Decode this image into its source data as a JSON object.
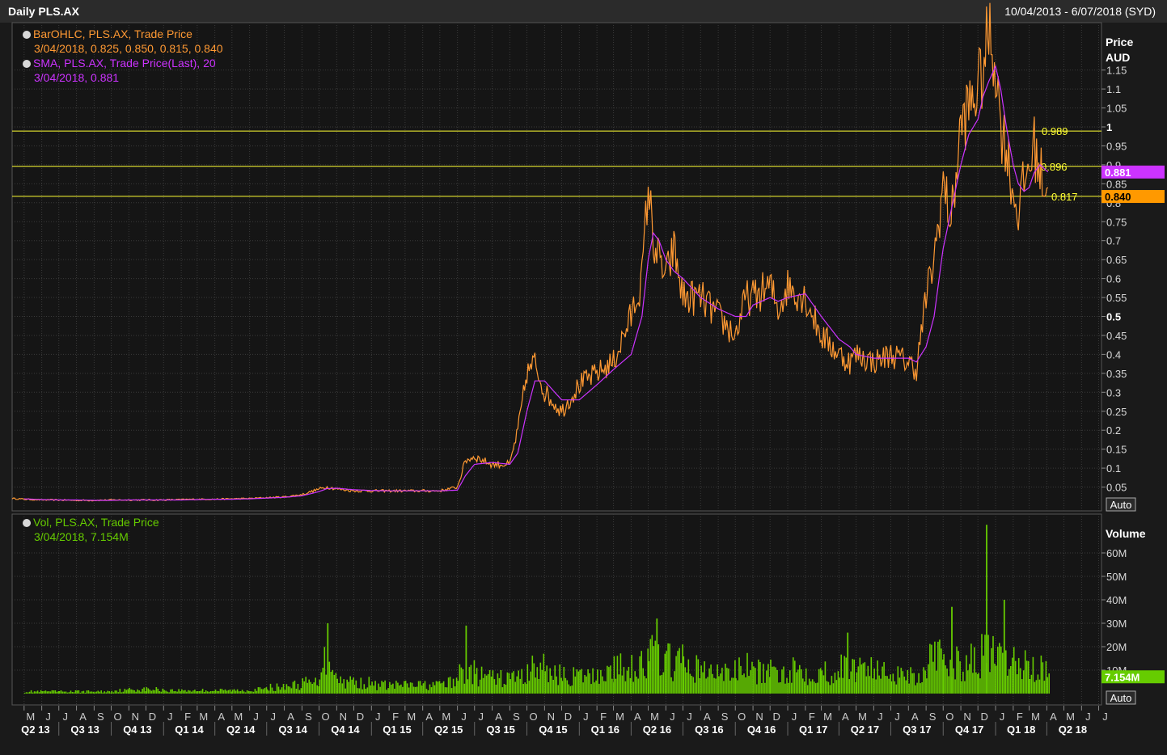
{
  "window": {
    "title": "Daily PLS.AX",
    "date_range": "10/04/2013 - 6/07/2018 (SYD)"
  },
  "legend": {
    "ohlc_name": "BarOHLC, PLS.AX, Trade Price",
    "ohlc_values": "3/04/2018, 0.825, 0.850, 0.815, 0.840",
    "sma_name": "SMA, PLS.AX, Trade Price(Last), 20",
    "sma_values": "3/04/2018, 0.881",
    "vol_name": "Vol, PLS.AX, Trade Price",
    "vol_values": "3/04/2018, 7.154M"
  },
  "colors": {
    "background": "#1a1a1a",
    "grid": "#3a3a3a",
    "price": "#ff9933",
    "sma": "#cc33ff",
    "volume": "#66cc00",
    "hline": "#ffff33",
    "text": "#d8d8d8"
  },
  "auto_label": "Auto",
  "chart_data": [
    {
      "type": "line",
      "ylabel": "Price",
      "unit": "AUD",
      "ylim": [
        0,
        1.22
      ],
      "y_ticks": [
        "0.05",
        "0.1",
        "0.15",
        "0.2",
        "0.25",
        "0.3",
        "0.35",
        "0.4",
        "0.45",
        "0.5",
        "0.55",
        "0.6",
        "0.65",
        "0.7",
        "0.75",
        "0.8",
        "0.85",
        "0.9",
        "0.95",
        "1",
        "1.05",
        "1.1",
        "1.15"
      ],
      "x": [
        "2013-04-10",
        "2013-05-01",
        "2013-06-01",
        "2013-07-01",
        "2013-08-01",
        "2013-09-01",
        "2013-10-01",
        "2013-11-01",
        "2013-12-01",
        "2014-01-01",
        "2014-02-01",
        "2014-03-01",
        "2014-04-01",
        "2014-05-01",
        "2014-06-01",
        "2014-07-01",
        "2014-08-01",
        "2014-09-01",
        "2014-10-01",
        "2014-10-15",
        "2014-11-01",
        "2014-12-01",
        "2015-01-01",
        "2015-02-01",
        "2015-03-01",
        "2015-04-01",
        "2015-05-01",
        "2015-06-01",
        "2015-06-15",
        "2015-07-01",
        "2015-08-01",
        "2015-09-01",
        "2015-09-15",
        "2015-10-01",
        "2015-10-15",
        "2015-11-01",
        "2015-12-01",
        "2016-01-01",
        "2016-02-01",
        "2016-03-01",
        "2016-04-01",
        "2016-04-20",
        "2016-05-01",
        "2016-05-10",
        "2016-05-20",
        "2016-06-01",
        "2016-06-15",
        "2016-07-01",
        "2016-08-01",
        "2016-09-01",
        "2016-10-01",
        "2016-10-20",
        "2016-11-01",
        "2016-12-01",
        "2016-12-15",
        "2017-01-01",
        "2017-02-01",
        "2017-03-01",
        "2017-04-01",
        "2017-04-20",
        "2017-05-01",
        "2017-06-01",
        "2017-07-01",
        "2017-08-01",
        "2017-08-15",
        "2017-09-01",
        "2017-09-15",
        "2017-10-01",
        "2017-10-15",
        "2017-11-01",
        "2017-11-15",
        "2017-12-01",
        "2017-12-10",
        "2017-12-20",
        "2018-01-01",
        "2018-01-10",
        "2018-01-20",
        "2018-02-01",
        "2018-02-10",
        "2018-02-20",
        "2018-03-01",
        "2018-03-10",
        "2018-03-20",
        "2018-04-03"
      ],
      "series": [
        {
          "values": [
            0.02,
            0.018,
            0.016,
            0.016,
            0.015,
            0.015,
            0.016,
            0.016,
            0.016,
            0.016,
            0.017,
            0.018,
            0.018,
            0.019,
            0.02,
            0.022,
            0.024,
            0.03,
            0.045,
            0.05,
            0.045,
            0.04,
            0.04,
            0.04,
            0.04,
            0.04,
            0.04,
            0.05,
            0.12,
            0.13,
            0.11,
            0.11,
            0.2,
            0.35,
            0.38,
            0.3,
            0.25,
            0.32,
            0.35,
            0.38,
            0.5,
            0.6,
            0.85,
            0.7,
            0.65,
            0.6,
            0.68,
            0.55,
            0.55,
            0.5,
            0.45,
            0.55,
            0.55,
            0.58,
            0.52,
            0.58,
            0.55,
            0.45,
            0.4,
            0.38,
            0.4,
            0.38,
            0.4,
            0.38,
            0.36,
            0.55,
            0.65,
            0.85,
            0.75,
            1.0,
            1.05,
            1.1,
            1.15,
            1.25,
            1.17,
            1.0,
            0.95,
            0.82,
            0.78,
            0.85,
            0.9,
            0.95,
            0.88,
            0.84
          ]
        },
        {
          "values": [
            null,
            0.019,
            0.017,
            0.016,
            0.016,
            0.015,
            0.015,
            0.016,
            0.016,
            0.016,
            0.016,
            0.017,
            0.018,
            0.018,
            0.019,
            0.021,
            0.023,
            0.027,
            0.038,
            0.046,
            0.047,
            0.043,
            0.041,
            0.04,
            0.04,
            0.04,
            0.04,
            0.042,
            0.08,
            0.11,
            0.115,
            0.11,
            0.14,
            0.25,
            0.33,
            0.33,
            0.28,
            0.28,
            0.32,
            0.36,
            0.4,
            0.5,
            0.65,
            0.72,
            0.7,
            0.65,
            0.62,
            0.6,
            0.55,
            0.52,
            0.5,
            0.5,
            0.53,
            0.55,
            0.54,
            0.55,
            0.56,
            0.5,
            0.44,
            0.42,
            0.4,
            0.39,
            0.39,
            0.39,
            0.38,
            0.42,
            0.5,
            0.68,
            0.78,
            0.9,
            0.98,
            1.02,
            1.08,
            1.12,
            1.16,
            1.1,
            1.0,
            0.9,
            0.85,
            0.83,
            0.84,
            0.88,
            0.9,
            0.881
          ]
        }
      ],
      "hlines": [
        {
          "y": 0.989,
          "label": "0.989"
        },
        {
          "y": 0.896,
          "label": "0.896"
        },
        {
          "y": 0.817,
          "label": "0.817"
        }
      ],
      "last_tags": [
        {
          "label": "0.881",
          "y": 0.881,
          "color": "#cc33ff"
        },
        {
          "label": "0.840",
          "y": 0.84,
          "color": "#ff9900"
        }
      ],
      "x_months": [
        "M",
        "J",
        "J",
        "A",
        "S",
        "O",
        "N",
        "D",
        "J",
        "F",
        "M",
        "A",
        "M",
        "J",
        "J",
        "A",
        "S",
        "O",
        "N",
        "D",
        "J",
        "F",
        "M",
        "A",
        "M",
        "J",
        "J",
        "A",
        "S",
        "O",
        "N",
        "D",
        "J",
        "F",
        "M",
        "A",
        "M",
        "J",
        "J",
        "A",
        "S",
        "O",
        "N",
        "D",
        "J",
        "F",
        "M",
        "A",
        "M",
        "J",
        "J",
        "A",
        "S",
        "O",
        "N",
        "D",
        "J",
        "F",
        "M",
        "A",
        "M",
        "J",
        "J"
      ],
      "x_quarters": [
        "Q2 13",
        "Q3 13",
        "Q4 13",
        "Q1 14",
        "Q2 14",
        "Q3 14",
        "Q4 14",
        "Q1 15",
        "Q2 15",
        "Q3 15",
        "Q4 15",
        "Q1 16",
        "Q2 16",
        "Q3 16",
        "Q4 16",
        "Q1 17",
        "Q2 17",
        "Q3 17",
        "Q4 17",
        "Q1 18",
        "Q2 18"
      ],
      "x_range": [
        "2013-04-10",
        "2018-07-06"
      ],
      "grid": true
    },
    {
      "type": "bar",
      "ylabel": "Volume",
      "ylim": [
        0,
        74
      ],
      "y_ticks": [
        "10M",
        "20M",
        "30M",
        "40M",
        "50M",
        "60M"
      ],
      "last_value": "7.154M",
      "x": [
        "2013-05",
        "2013-06",
        "2013-07",
        "2013-08",
        "2013-09",
        "2013-10",
        "2013-11",
        "2013-12",
        "2014-01",
        "2014-02",
        "2014-03",
        "2014-04",
        "2014-05",
        "2014-06",
        "2014-07",
        "2014-08",
        "2014-09",
        "2014-10",
        "2014-11",
        "2014-12",
        "2015-01",
        "2015-02",
        "2015-03",
        "2015-04",
        "2015-05",
        "2015-06",
        "2015-07",
        "2015-08",
        "2015-09",
        "2015-10",
        "2015-11",
        "2015-12",
        "2016-01",
        "2016-02",
        "2016-03",
        "2016-04",
        "2016-05",
        "2016-06",
        "2016-07",
        "2016-08",
        "2016-09",
        "2016-10",
        "2016-11",
        "2016-12",
        "2017-01",
        "2017-02",
        "2017-03",
        "2017-04",
        "2017-05",
        "2017-06",
        "2017-07",
        "2017-08",
        "2017-09",
        "2017-10",
        "2017-11",
        "2017-12",
        "2018-01",
        "2018-02",
        "2018-03",
        "2018-04"
      ],
      "values": [
        1,
        1,
        1,
        1,
        1,
        1.5,
        2,
        2,
        1.5,
        1.5,
        1.5,
        1.5,
        1.5,
        2,
        3,
        4,
        5,
        15,
        6,
        5,
        4,
        4,
        4,
        4,
        5,
        10,
        8,
        7,
        8,
        12,
        10,
        8,
        8,
        10,
        12,
        14,
        18,
        15,
        12,
        10,
        10,
        12,
        10,
        10,
        12,
        10,
        10,
        12,
        14,
        10,
        10,
        9,
        16,
        14,
        15,
        18,
        15,
        14,
        12,
        7.154
      ],
      "peaks": [
        {
          "x": "2014-10",
          "value": 30
        },
        {
          "x": "2015-06",
          "value": 29
        },
        {
          "x": "2016-05",
          "value": 32
        },
        {
          "x": "2017-04",
          "value": 26
        },
        {
          "x": "2017-10",
          "value": 37
        },
        {
          "x": "2017-12",
          "value": 72
        },
        {
          "x": "2018-01",
          "value": 40
        }
      ]
    }
  ]
}
